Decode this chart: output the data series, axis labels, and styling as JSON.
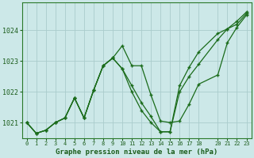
{
  "title": "Graphe pression niveau de la mer (hPa)",
  "bg_color": "#cce8e8",
  "plot_bg_color": "#cce8e8",
  "grid_color": "#aacccc",
  "line_color": "#1a6b1a",
  "xlim": [
    -0.5,
    23.5
  ],
  "ylim": [
    1020.5,
    1024.9
  ],
  "yticks": [
    1021,
    1022,
    1023,
    1024
  ],
  "xticks": [
    0,
    1,
    2,
    3,
    4,
    5,
    6,
    7,
    8,
    9,
    10,
    11,
    12,
    13,
    14,
    15,
    16,
    17,
    18,
    20,
    21,
    22,
    23
  ],
  "series": [
    {
      "x": [
        0,
        1,
        2,
        3,
        4,
        5,
        6,
        7,
        8,
        9,
        10,
        11,
        12,
        13,
        14,
        15,
        16,
        17,
        18,
        20,
        21,
        22,
        23
      ],
      "y": [
        1021.0,
        1020.65,
        1020.75,
        1021.0,
        1021.15,
        1021.8,
        1021.15,
        1022.05,
        1022.85,
        1023.1,
        1023.5,
        1022.85,
        1022.85,
        1021.9,
        1021.05,
        1021.0,
        1021.05,
        1021.6,
        1022.25,
        1022.55,
        1023.6,
        1024.1,
        1024.5
      ]
    },
    {
      "x": [
        0,
        1,
        2,
        3,
        4,
        5,
        6,
        7,
        8,
        9,
        10,
        11,
        12,
        13,
        14,
        15,
        16,
        17,
        18,
        20,
        21,
        22,
        23
      ],
      "y": [
        1021.0,
        1020.65,
        1020.75,
        1021.0,
        1021.15,
        1021.8,
        1021.15,
        1022.05,
        1022.85,
        1023.1,
        1022.75,
        1022.2,
        1021.65,
        1021.2,
        1020.7,
        1020.7,
        1022.2,
        1022.8,
        1023.3,
        1023.9,
        1024.05,
        1024.3,
        1024.6
      ]
    },
    {
      "x": [
        0,
        1,
        2,
        3,
        4,
        5,
        6,
        7,
        8,
        9,
        10,
        11,
        12,
        13,
        14,
        15,
        16,
        17,
        18,
        20,
        21,
        22,
        23
      ],
      "y": [
        1021.0,
        1020.65,
        1020.75,
        1021.0,
        1021.15,
        1021.8,
        1021.15,
        1022.05,
        1022.85,
        1023.1,
        1022.75,
        1022.0,
        1021.4,
        1021.0,
        1020.7,
        1020.7,
        1022.0,
        1022.5,
        1022.9,
        1023.7,
        1024.05,
        1024.2,
        1024.55
      ]
    }
  ]
}
